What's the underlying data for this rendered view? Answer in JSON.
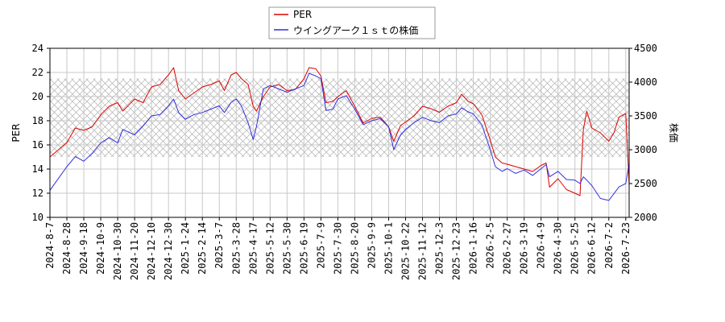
{
  "chart_data": {
    "type": "line",
    "legend": {
      "placement": "top-center"
    },
    "grid": true,
    "shaded_band": {
      "axis": "left",
      "range": [
        15,
        21.5
      ],
      "pattern": "crosshatch"
    },
    "x_tick_labels": [
      "2024-8-7",
      "2024-8-28",
      "2024-9-18",
      "2024-10-9",
      "2024-10-30",
      "2024-11-20",
      "2024-12-10",
      "2024-12-30",
      "2025-1-24",
      "2025-2-14",
      "2025-3-7",
      "2025-3-28",
      "2025-4-17",
      "2025-5-12",
      "2025-5-30",
      "2025-6-19",
      "2025-7-9",
      "2025-7-30",
      "2025-8-20",
      "2025-9-9",
      "2025-10-1",
      "2025-10-22",
      "2025-11-12",
      "2025-12-3",
      "2025-12-23",
      "2026-1-16",
      "2026-2-5",
      "2026-2-27",
      "2026-3-19",
      "2026-4-9",
      "2026-4-30",
      "2026-5-25",
      "2026-6-12",
      "2026-7-2",
      "2026-7-23"
    ],
    "left_axis": {
      "label": "PER",
      "ylim": [
        10,
        24
      ],
      "ticks": [
        10,
        12,
        14,
        16,
        18,
        20,
        22,
        24
      ]
    },
    "right_axis": {
      "label": "株価",
      "ylim": [
        2000,
        4500
      ],
      "ticks": [
        2000,
        2500,
        3000,
        3500,
        4000,
        4500
      ]
    },
    "series": [
      {
        "name": "PER",
        "axis": "left",
        "color": "#dd0000",
        "points": [
          [
            0,
            15.0
          ],
          [
            1,
            16.2
          ],
          [
            1.5,
            17.4
          ],
          [
            2,
            17.2
          ],
          [
            2.5,
            17.5
          ],
          [
            3,
            18.5
          ],
          [
            3.5,
            19.2
          ],
          [
            4,
            19.5
          ],
          [
            4.3,
            18.8
          ],
          [
            5,
            19.8
          ],
          [
            5.5,
            19.5
          ],
          [
            6,
            20.8
          ],
          [
            6.5,
            21.0
          ],
          [
            7,
            21.8
          ],
          [
            7.3,
            22.4
          ],
          [
            7.6,
            20.5
          ],
          [
            8,
            19.8
          ],
          [
            8.5,
            20.3
          ],
          [
            9,
            20.8
          ],
          [
            9.5,
            21.0
          ],
          [
            10,
            21.3
          ],
          [
            10.3,
            20.5
          ],
          [
            10.7,
            21.8
          ],
          [
            11,
            22.0
          ],
          [
            11.3,
            21.5
          ],
          [
            11.7,
            21.0
          ],
          [
            12,
            19.2
          ],
          [
            12.2,
            18.8
          ],
          [
            12.6,
            20.0
          ],
          [
            13,
            20.8
          ],
          [
            13.5,
            21.0
          ],
          [
            14,
            20.5
          ],
          [
            14.5,
            20.6
          ],
          [
            15,
            21.5
          ],
          [
            15.3,
            22.4
          ],
          [
            15.7,
            22.3
          ],
          [
            16,
            21.7
          ],
          [
            16.3,
            19.5
          ],
          [
            16.7,
            19.6
          ],
          [
            17,
            20.0
          ],
          [
            17.5,
            20.5
          ],
          [
            18,
            19.2
          ],
          [
            18.5,
            17.8
          ],
          [
            19,
            18.2
          ],
          [
            19.5,
            18.3
          ],
          [
            20,
            17.5
          ],
          [
            20.3,
            16.3
          ],
          [
            20.7,
            17.6
          ],
          [
            21,
            17.9
          ],
          [
            21.5,
            18.4
          ],
          [
            22,
            19.2
          ],
          [
            22.5,
            19.0
          ],
          [
            23,
            18.7
          ],
          [
            23.5,
            19.2
          ],
          [
            24,
            19.5
          ],
          [
            24.3,
            20.2
          ],
          [
            24.7,
            19.6
          ],
          [
            25,
            19.4
          ],
          [
            25.5,
            18.5
          ],
          [
            26,
            16.4
          ],
          [
            26.3,
            15.0
          ],
          [
            26.7,
            14.5
          ],
          [
            27,
            14.4
          ],
          [
            27.5,
            14.2
          ],
          [
            28,
            14.0
          ],
          [
            28.5,
            13.8
          ],
          [
            29,
            14.3
          ],
          [
            29.3,
            14.5
          ],
          [
            29.5,
            12.5
          ],
          [
            30,
            13.2
          ],
          [
            30.5,
            12.3
          ],
          [
            31,
            12.0
          ],
          [
            31.3,
            11.8
          ],
          [
            31.5,
            17.3
          ],
          [
            31.7,
            18.8
          ],
          [
            32,
            17.4
          ],
          [
            32.5,
            17.0
          ],
          [
            33,
            16.3
          ],
          [
            33.3,
            17.0
          ],
          [
            33.6,
            18.3
          ],
          [
            34,
            18.6
          ],
          [
            34.2,
            12.7
          ],
          [
            34.5,
            13.5
          ],
          [
            34.8,
            15.0
          ],
          [
            35,
            14.6
          ]
        ]
      },
      {
        "name": "ウイングアーク１ｓｔの株価",
        "axis": "right",
        "color": "#3030dd",
        "points": [
          [
            0,
            2400
          ],
          [
            1,
            2750
          ],
          [
            1.5,
            2900
          ],
          [
            2,
            2830
          ],
          [
            2.5,
            2950
          ],
          [
            3,
            3100
          ],
          [
            3.5,
            3180
          ],
          [
            4,
            3100
          ],
          [
            4.3,
            3300
          ],
          [
            5,
            3220
          ],
          [
            5.5,
            3350
          ],
          [
            6,
            3500
          ],
          [
            6.5,
            3520
          ],
          [
            7,
            3650
          ],
          [
            7.3,
            3750
          ],
          [
            7.6,
            3550
          ],
          [
            8,
            3450
          ],
          [
            8.5,
            3520
          ],
          [
            9,
            3550
          ],
          [
            9.5,
            3600
          ],
          [
            10,
            3650
          ],
          [
            10.3,
            3550
          ],
          [
            10.7,
            3700
          ],
          [
            11,
            3750
          ],
          [
            11.3,
            3650
          ],
          [
            11.7,
            3400
          ],
          [
            12,
            3150
          ],
          [
            12.2,
            3350
          ],
          [
            12.6,
            3900
          ],
          [
            13,
            3950
          ],
          [
            13.5,
            3900
          ],
          [
            14,
            3850
          ],
          [
            14.5,
            3900
          ],
          [
            15,
            3950
          ],
          [
            15.3,
            4130
          ],
          [
            15.7,
            4090
          ],
          [
            16,
            4050
          ],
          [
            16.3,
            3580
          ],
          [
            16.7,
            3600
          ],
          [
            17,
            3750
          ],
          [
            17.5,
            3800
          ],
          [
            18,
            3600
          ],
          [
            18.5,
            3370
          ],
          [
            19,
            3430
          ],
          [
            19.5,
            3460
          ],
          [
            20,
            3340
          ],
          [
            20.3,
            3000
          ],
          [
            20.7,
            3220
          ],
          [
            21,
            3300
          ],
          [
            21.5,
            3400
          ],
          [
            22,
            3480
          ],
          [
            22.5,
            3430
          ],
          [
            23,
            3400
          ],
          [
            23.5,
            3500
          ],
          [
            24,
            3530
          ],
          [
            24.3,
            3620
          ],
          [
            24.7,
            3560
          ],
          [
            25,
            3530
          ],
          [
            25.5,
            3370
          ],
          [
            26,
            3000
          ],
          [
            26.3,
            2750
          ],
          [
            26.7,
            2680
          ],
          [
            27,
            2720
          ],
          [
            27.5,
            2650
          ],
          [
            28,
            2700
          ],
          [
            28.5,
            2620
          ],
          [
            29,
            2720
          ],
          [
            29.3,
            2780
          ],
          [
            29.5,
            2600
          ],
          [
            30,
            2680
          ],
          [
            30.5,
            2560
          ],
          [
            31,
            2550
          ],
          [
            31.3,
            2500
          ],
          [
            31.5,
            2600
          ],
          [
            31.7,
            2550
          ],
          [
            32,
            2470
          ],
          [
            32.5,
            2280
          ],
          [
            33,
            2250
          ],
          [
            33.3,
            2350
          ],
          [
            33.6,
            2450
          ],
          [
            34,
            2500
          ],
          [
            34.2,
            2800
          ],
          [
            34.5,
            2950
          ],
          [
            34.8,
            3220
          ],
          [
            35,
            3000
          ]
        ]
      }
    ]
  }
}
